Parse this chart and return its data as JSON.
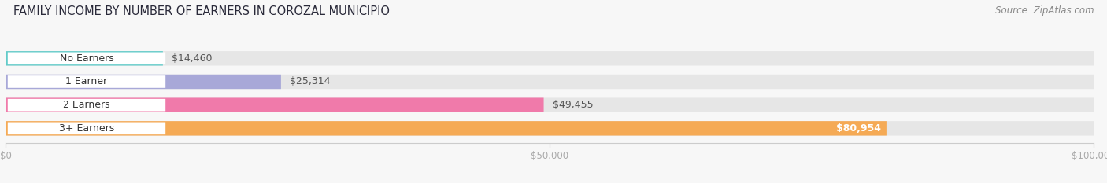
{
  "title": "FAMILY INCOME BY NUMBER OF EARNERS IN COROZAL MUNICIPIO",
  "source": "Source: ZipAtlas.com",
  "categories": [
    "No Earners",
    "1 Earner",
    "2 Earners",
    "3+ Earners"
  ],
  "values": [
    14460,
    25314,
    49455,
    80954
  ],
  "bar_colors": [
    "#62cbc9",
    "#a8a8d8",
    "#f07aaa",
    "#f5aa55"
  ],
  "bar_labels": [
    "$14,460",
    "$25,314",
    "$49,455",
    "$80,954"
  ],
  "xlim": [
    0,
    100000
  ],
  "xticks": [
    0,
    50000,
    100000
  ],
  "xtick_labels": [
    "$0",
    "$50,000",
    "$100,000"
  ],
  "background_color": "#f7f7f7",
  "bar_bg_color": "#e6e6e6",
  "title_fontsize": 10.5,
  "source_fontsize": 8.5,
  "label_fontsize": 9,
  "cat_fontsize": 9,
  "bar_height": 0.62,
  "figsize": [
    14.06,
    2.33
  ],
  "dpi": 100
}
